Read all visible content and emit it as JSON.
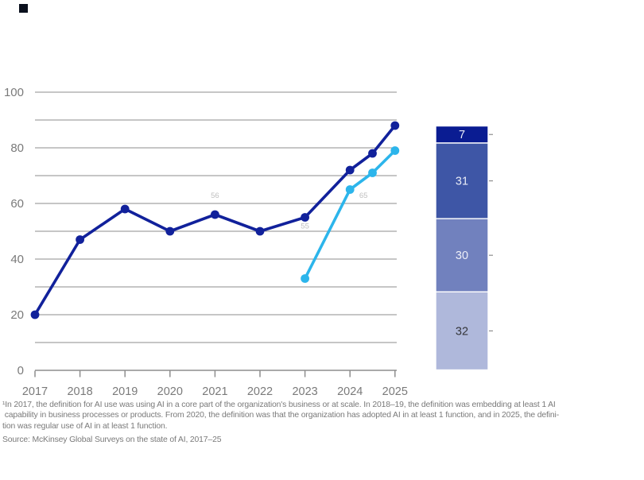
{
  "exhibit": {
    "corner_mark_color": "#0a101d"
  },
  "colors": {
    "navy_line": "#11219b",
    "cyan_line": "#2cb5eb",
    "grid": "#8e8e8e",
    "axis_text": "#7a7a7a",
    "footnote_text": "#7a7a7a",
    "faint_label": "rgba(110,110,110,0.45)",
    "bar_border": "#ffffff",
    "bar_tick": "#8e8e8e"
  },
  "chart_data": [
    {
      "type": "line",
      "title": "",
      "xlabel": "",
      "ylabel": "",
      "ylim": [
        0,
        100
      ],
      "grid_interval": 10,
      "grid": "on",
      "legend_position": "none",
      "ytick_labels": [
        "0",
        "20",
        "40",
        "60",
        "80",
        "100"
      ],
      "xtick_labels": [
        "2017",
        "2018",
        "2019",
        "2020",
        "2021",
        "2022",
        "2023",
        "2024",
        "2025"
      ],
      "series": [
        {
          "name": "ai-use",
          "color": "#11219b",
          "x": [
            2017,
            2018,
            2019,
            2020,
            2021,
            2022,
            2023,
            2024,
            2024.5,
            2025
          ],
          "values": [
            20,
            47,
            58,
            50,
            56,
            50,
            55,
            72,
            78,
            88
          ]
        },
        {
          "name": "gen-ai-use",
          "color": "#2cb5eb",
          "x": [
            2023,
            2024,
            2024.5,
            2025
          ],
          "values": [
            33,
            65,
            71,
            79
          ]
        }
      ],
      "faint_point_labels": [
        {
          "text": "56",
          "x": 2021,
          "value": 62
        },
        {
          "text": "55",
          "x": 2023,
          "value": 51
        },
        {
          "text": "65",
          "x": 2024.3,
          "value": 62
        }
      ]
    },
    {
      "type": "stacked_bar",
      "title": "",
      "total": 100,
      "aligned_to_line_value": 88,
      "segments": [
        {
          "value": 7,
          "label": "7",
          "color": "#0a1c92",
          "label_color": "#e9ecf6"
        },
        {
          "value": 31,
          "label": "31",
          "color": "#3e56a6",
          "label_color": "#e9ecf6"
        },
        {
          "value": 30,
          "label": "30",
          "color": "#7181be",
          "label_color": "#edeff8"
        },
        {
          "value": 32,
          "label": "32",
          "color": "#35363b",
          "fill": "#afb8db",
          "label_color": "#35363b"
        }
      ]
    }
  ],
  "footnote": {
    "line1": "¹In 2017, the definition for AI use was using AI in a core part of the organization's business or at scale. In 2018–19, the definition was embedding at least 1 AI",
    "line2": " capability in business processes or products. From 2020, the definition was that the organization has adopted AI in at least 1 function, and in 2025, the defini-",
    "line3": "tion was regular use of AI in at least 1 function.",
    "source": "Source: McKinsey Global Surveys on the state of AI, 2017–25"
  }
}
